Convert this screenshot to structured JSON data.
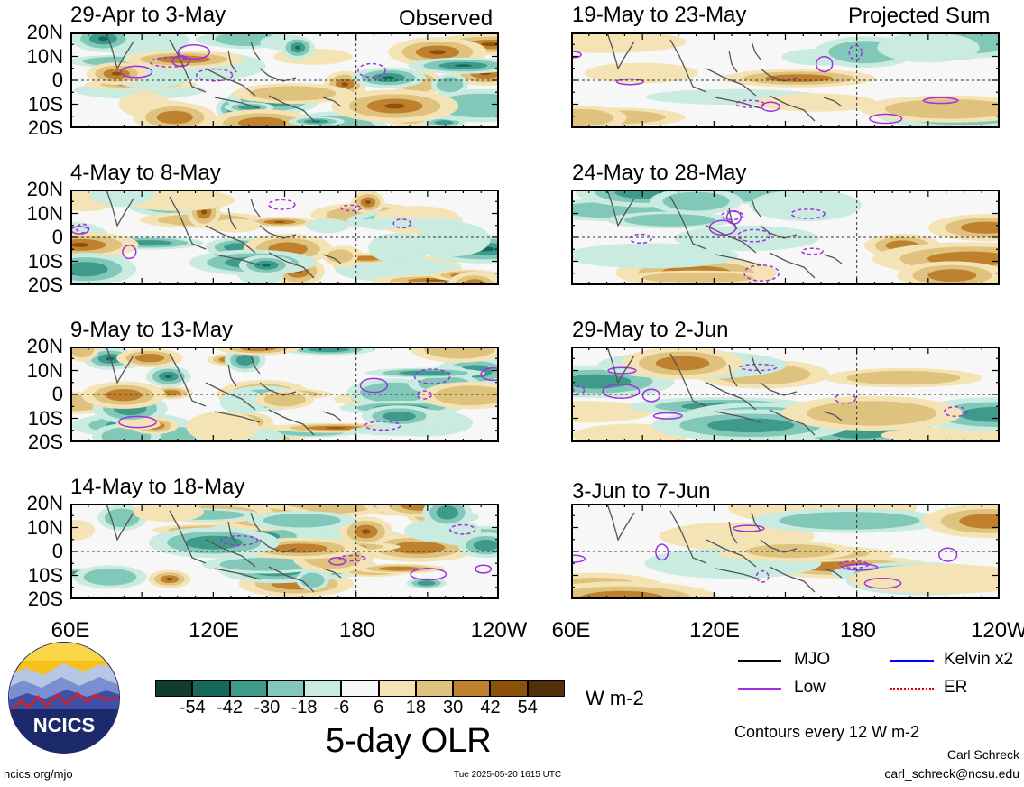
{
  "chart_data": {
    "type": "heatmap",
    "title": "5-day OLR",
    "units": "W m-2",
    "colorbar": {
      "ticks": [
        "-54",
        "-42",
        "-30",
        "-18",
        "-6",
        "6",
        "18",
        "30",
        "42",
        "54"
      ],
      "colors": [
        "#0f3d32",
        "#16695d",
        "#3e9b8c",
        "#82c8b9",
        "#c9ebe0",
        "#f7f7f7",
        "#f4e3b5",
        "#dfc27d",
        "#bf812d",
        "#8c510a",
        "#54300a"
      ]
    },
    "x_ticks": [
      "60E",
      "120E",
      "180",
      "120W"
    ],
    "y_ticks": [
      "20N",
      "10N",
      "0",
      "10S",
      "20S"
    ],
    "x_range_deg_east": [
      60,
      240
    ],
    "y_range_deg": [
      -20,
      20
    ],
    "sections": {
      "left": "Observed",
      "right": "Projected Sum"
    },
    "panels": [
      {
        "column": "left",
        "label": "29-Apr to 3-May"
      },
      {
        "column": "left",
        "label": "4-May to 8-May"
      },
      {
        "column": "left",
        "label": "9-May to 13-May"
      },
      {
        "column": "left",
        "label": "14-May to 18-May"
      },
      {
        "column": "right",
        "label": "19-May to 23-May"
      },
      {
        "column": "right",
        "label": "24-May to 28-May"
      },
      {
        "column": "right",
        "label": "29-May to 2-Jun"
      },
      {
        "column": "right",
        "label": "3-Jun to 7-Jun"
      }
    ],
    "legend": [
      {
        "label": "MJO",
        "color": "#000000",
        "style": "solid"
      },
      {
        "label": "Kelvin x2",
        "color": "#0000ff",
        "style": "solid"
      },
      {
        "label": "Low",
        "color": "#a030e0",
        "style": "solid"
      },
      {
        "label": "ER",
        "color": "#e00000",
        "style": "dotted"
      }
    ],
    "contour_note": "Contours every 12 W m-2"
  },
  "footer": {
    "logo_text": "NCICS",
    "url": "ncics.org/mjo",
    "timestamp": "Tue 2025-05-20 1615 UTC",
    "author": "Carl Schreck",
    "email": "carl_schreck@ncsu.edu"
  }
}
